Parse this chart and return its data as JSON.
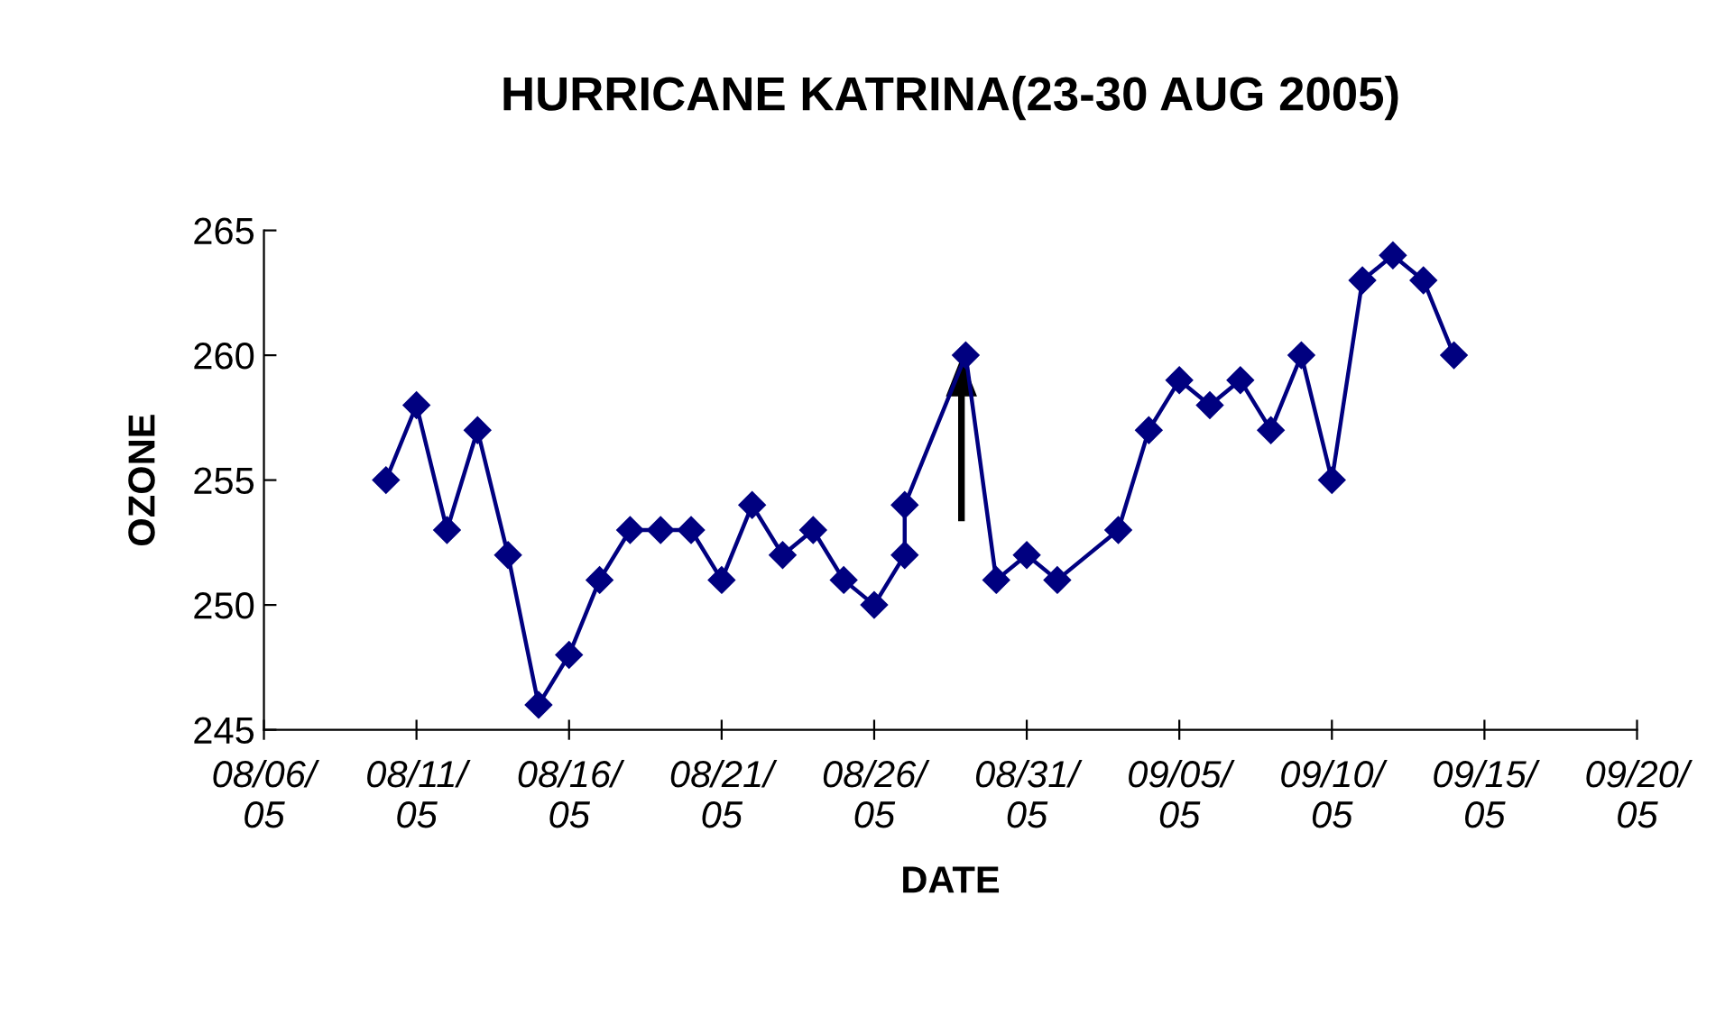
{
  "chart_data": {
    "type": "line",
    "title": "HURRICANE KATRINA(23-30 AUG 2005)",
    "xlabel": "DATE",
    "ylabel": "OZONE",
    "x": [
      "2005-08-10",
      "2005-08-11",
      "2005-08-12",
      "2005-08-13",
      "2005-08-14",
      "2005-08-15",
      "2005-08-16",
      "2005-08-17",
      "2005-08-18",
      "2005-08-19",
      "2005-08-20",
      "2005-08-21",
      "2005-08-22",
      "2005-08-23",
      "2005-08-24",
      "2005-08-25",
      "2005-08-26",
      "2005-08-27",
      "2005-08-27",
      "2005-08-29",
      "2005-08-30",
      "2005-08-31",
      "2005-09-01",
      "2005-09-03",
      "2005-09-04",
      "2005-09-05",
      "2005-09-06",
      "2005-09-07",
      "2005-09-08",
      "2005-09-09",
      "2005-09-10",
      "2005-09-11",
      "2005-09-12",
      "2005-09-13",
      "2005-09-14"
    ],
    "series": [
      {
        "color": "#000080",
        "values": [
          255,
          258,
          253,
          257,
          252,
          246,
          248,
          251,
          253,
          253,
          253,
          251,
          254,
          252,
          253,
          251,
          250,
          252,
          254,
          260,
          251,
          252,
          251,
          253,
          257,
          259,
          258,
          259,
          257,
          260,
          255,
          263,
          264,
          263,
          260
        ]
      }
    ],
    "xlim": [
      "2005-08-06",
      "2005-09-20"
    ],
    "xticks": [
      {
        "value": "2005-08-06",
        "label": "08/06/\n05"
      },
      {
        "value": "2005-08-11",
        "label": "08/11/\n05"
      },
      {
        "value": "2005-08-16",
        "label": "08/16/\n05"
      },
      {
        "value": "2005-08-21",
        "label": "08/21/\n05"
      },
      {
        "value": "2005-08-26",
        "label": "08/26/\n05"
      },
      {
        "value": "2005-08-31",
        "label": "08/31/\n05"
      },
      {
        "value": "2005-09-05",
        "label": "09/05/\n05"
      },
      {
        "value": "2005-09-10",
        "label": "09/10/\n05"
      },
      {
        "value": "2005-09-15",
        "label": "09/15/\n05"
      },
      {
        "value": "2005-09-20",
        "label": "09/20/\n05"
      }
    ],
    "ylim": [
      245,
      265
    ],
    "yticks": [
      245,
      250,
      255,
      260,
      265
    ],
    "marker": "diamond",
    "line_style": "solid",
    "grid": false,
    "legend": false
  }
}
